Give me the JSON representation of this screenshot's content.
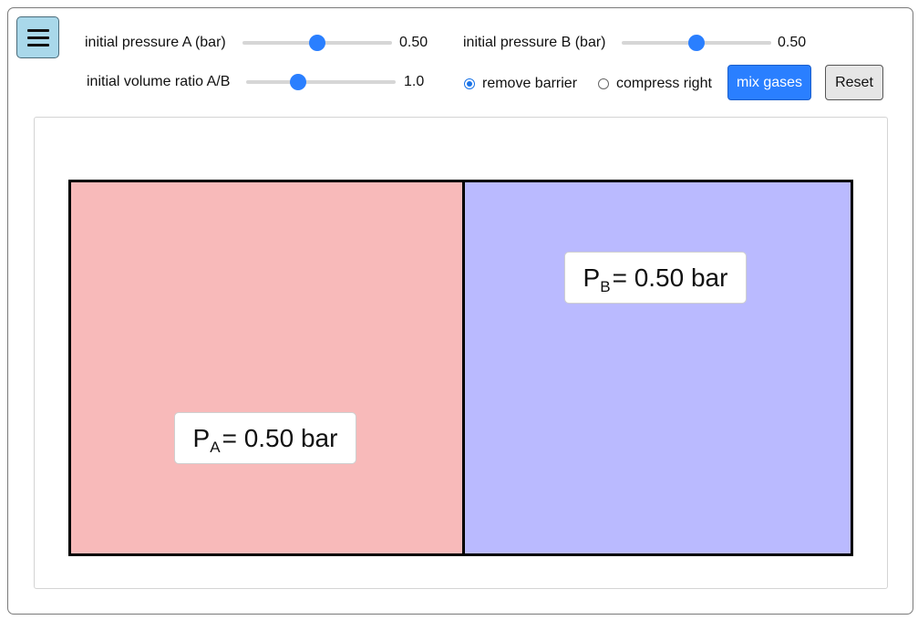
{
  "controls": {
    "pressure_a": {
      "label": "initial pressure A (bar)",
      "value": "0.50",
      "fraction": 0.5
    },
    "pressure_b": {
      "label": "initial pressure B (bar)",
      "value": "0.50",
      "fraction": 0.5
    },
    "volume_ratio": {
      "label": "initial volume ratio A/B",
      "value": "1.0",
      "fraction": 0.35
    },
    "mode": {
      "options": [
        {
          "label": "remove barrier",
          "selected": true
        },
        {
          "label": "compress right",
          "selected": false
        }
      ]
    },
    "mix_button": "mix gases",
    "reset_button": "Reset"
  },
  "chambers": {
    "a": {
      "symbol": "P",
      "sub": "A",
      "equals": "= 0.50 bar",
      "color": "#f8baba"
    },
    "b": {
      "symbol": "P",
      "sub": "B",
      "equals": "= 0.50 bar",
      "color": "#babaff"
    }
  },
  "colors": {
    "accent": "#2a7fff"
  }
}
